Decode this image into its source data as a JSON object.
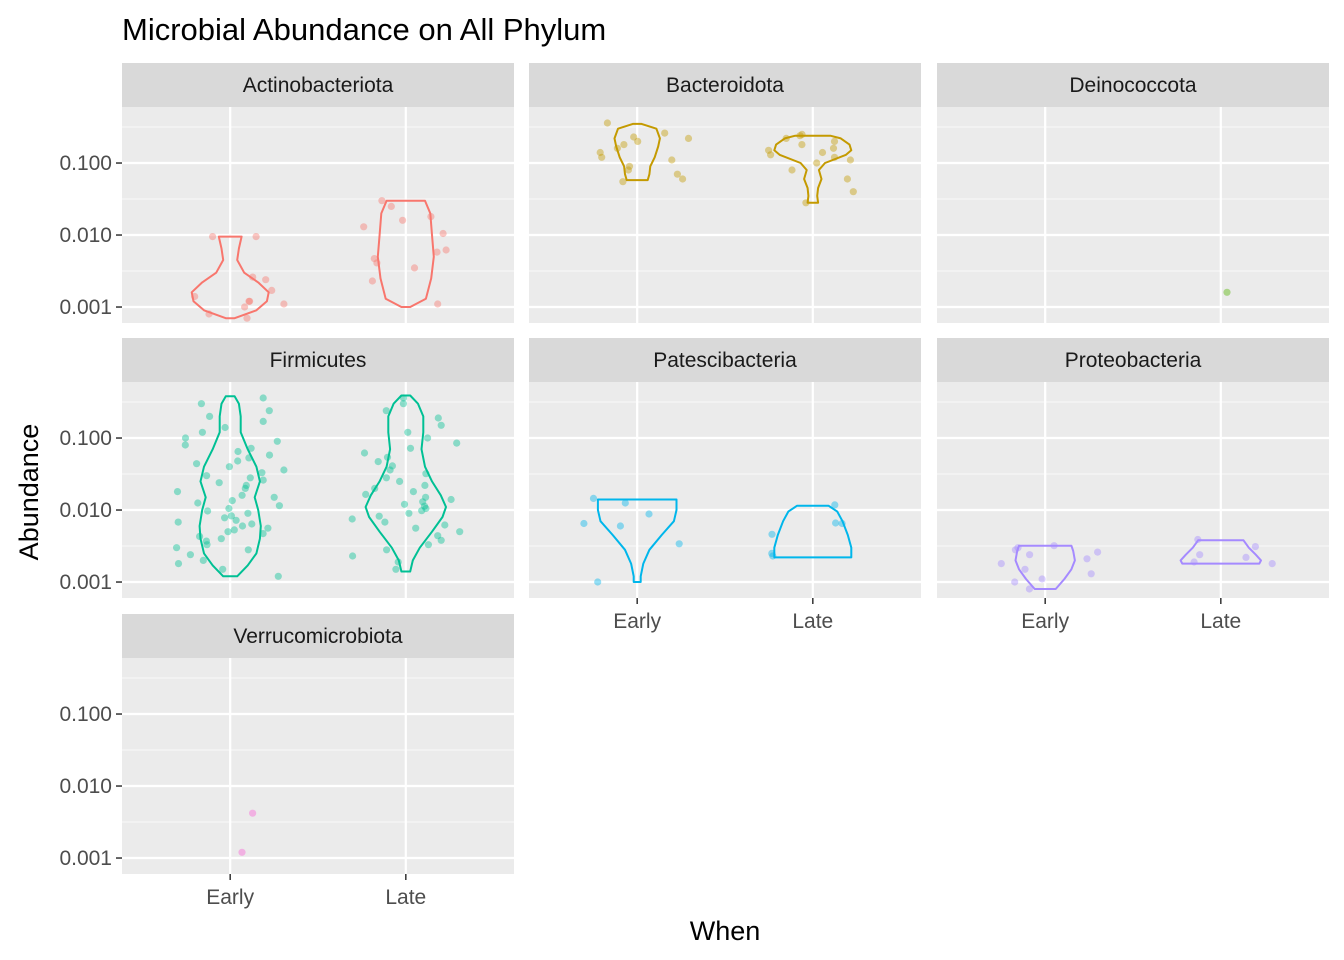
{
  "chart_data": {
    "type": "violin",
    "title": "Microbial Abundance on All Phylum",
    "xlabel": "When",
    "ylabel": "Abundance",
    "categories": [
      "Early",
      "Late"
    ],
    "y_scale": "log10",
    "ylim": [
      0.0006,
      0.6
    ],
    "y_ticks": [
      0.001,
      0.01,
      0.1
    ],
    "y_tick_labels": [
      "0.001",
      "0.010",
      "0.100"
    ],
    "grid": true,
    "legend": "none",
    "facets": [
      {
        "name": "Actinobacteriota",
        "color": "#F8766D",
        "violins": {
          "Early": [
            [
              0.0007,
              0.05
            ],
            [
              0.0009,
              0.3
            ],
            [
              0.0012,
              0.42
            ],
            [
              0.0016,
              0.44
            ],
            [
              0.0022,
              0.32
            ],
            [
              0.003,
              0.16
            ],
            [
              0.0045,
              0.08
            ],
            [
              0.0065,
              0.1
            ],
            [
              0.0095,
              0.13
            ]
          ],
          "Late": [
            [
              0.001,
              0.05
            ],
            [
              0.0013,
              0.23
            ],
            [
              0.0025,
              0.29
            ],
            [
              0.005,
              0.32
            ],
            [
              0.01,
              0.3
            ],
            [
              0.02,
              0.28
            ],
            [
              0.03,
              0.22
            ]
          ]
        },
        "points": {
          "Early": [
            0.0007,
            0.0008,
            0.001,
            0.0011,
            0.0012,
            0.0012,
            0.0014,
            0.0017,
            0.0026,
            0.0024,
            0.0095,
            0.0095
          ],
          "Late": [
            0.0011,
            0.0023,
            0.0035,
            0.0041,
            0.0047,
            0.0058,
            0.0062,
            0.0105,
            0.013,
            0.016,
            0.018,
            0.025,
            0.03
          ]
        }
      },
      {
        "name": "Bacteroidota",
        "color": "#C49A00",
        "violins": {
          "Early": [
            [
              0.058,
              0.12
            ],
            [
              0.07,
              0.14
            ],
            [
              0.09,
              0.15
            ],
            [
              0.12,
              0.2
            ],
            [
              0.17,
              0.24
            ],
            [
              0.22,
              0.26
            ],
            [
              0.3,
              0.22
            ],
            [
              0.35,
              0.05
            ]
          ],
          "Late": [
            [
              0.028,
              0.06
            ],
            [
              0.035,
              0.05
            ],
            [
              0.045,
              0.06
            ],
            [
              0.06,
              0.1
            ],
            [
              0.08,
              0.07
            ],
            [
              0.1,
              0.14
            ],
            [
              0.13,
              0.38
            ],
            [
              0.15,
              0.44
            ],
            [
              0.18,
              0.42
            ],
            [
              0.22,
              0.32
            ],
            [
              0.24,
              0.2
            ]
          ]
        },
        "points": {
          "Early": [
            0.055,
            0.06,
            0.07,
            0.08,
            0.09,
            0.11,
            0.12,
            0.14,
            0.16,
            0.18,
            0.2,
            0.22,
            0.23,
            0.26,
            0.36
          ],
          "Late": [
            0.028,
            0.04,
            0.06,
            0.08,
            0.1,
            0.11,
            0.12,
            0.13,
            0.14,
            0.15,
            0.16,
            0.18,
            0.2,
            0.22,
            0.24,
            0.25
          ]
        }
      },
      {
        "name": "Deinococcota",
        "color": "#53B400",
        "violins": {},
        "points": {
          "Late": [
            0.0016
          ]
        }
      },
      {
        "name": "Firmicutes",
        "color": "#00C094",
        "violins": {
          "Early": [
            [
              0.0012,
              0.08
            ],
            [
              0.0017,
              0.2
            ],
            [
              0.0025,
              0.3
            ],
            [
              0.004,
              0.34
            ],
            [
              0.006,
              0.35
            ],
            [
              0.01,
              0.32
            ],
            [
              0.015,
              0.28
            ],
            [
              0.025,
              0.34
            ],
            [
              0.04,
              0.3
            ],
            [
              0.07,
              0.2
            ],
            [
              0.12,
              0.12
            ],
            [
              0.2,
              0.12
            ],
            [
              0.3,
              0.1
            ],
            [
              0.38,
              0.05
            ]
          ],
          "Late": [
            [
              0.0014,
              0.05
            ],
            [
              0.002,
              0.08
            ],
            [
              0.003,
              0.16
            ],
            [
              0.005,
              0.3
            ],
            [
              0.008,
              0.42
            ],
            [
              0.011,
              0.46
            ],
            [
              0.016,
              0.4
            ],
            [
              0.025,
              0.3
            ],
            [
              0.04,
              0.22
            ],
            [
              0.07,
              0.18
            ],
            [
              0.12,
              0.2
            ],
            [
              0.2,
              0.2
            ],
            [
              0.3,
              0.14
            ],
            [
              0.39,
              0.05
            ]
          ]
        },
        "points": {
          "Early": [
            0.0012,
            0.0015,
            0.0018,
            0.002,
            0.0024,
            0.0028,
            0.003,
            0.0033,
            0.0037,
            0.004,
            0.0043,
            0.0047,
            0.005,
            0.0053,
            0.0056,
            0.006,
            0.0064,
            0.0068,
            0.0072,
            0.0078,
            0.0083,
            0.009,
            0.0097,
            0.0105,
            0.0115,
            0.0125,
            0.0135,
            0.015,
            0.016,
            0.018,
            0.02,
            0.022,
            0.024,
            0.026,
            0.028,
            0.03,
            0.033,
            0.036,
            0.04,
            0.044,
            0.048,
            0.053,
            0.058,
            0.065,
            0.072,
            0.08,
            0.09,
            0.1,
            0.12,
            0.14,
            0.17,
            0.2,
            0.24,
            0.3,
            0.36
          ],
          "Late": [
            0.0015,
            0.0019,
            0.0023,
            0.0028,
            0.0033,
            0.0038,
            0.0044,
            0.005,
            0.0056,
            0.0062,
            0.0068,
            0.0075,
            0.0082,
            0.009,
            0.0098,
            0.0105,
            0.0113,
            0.012,
            0.013,
            0.014,
            0.015,
            0.0165,
            0.018,
            0.02,
            0.022,
            0.025,
            0.028,
            0.032,
            0.036,
            0.041,
            0.047,
            0.054,
            0.062,
            0.072,
            0.085,
            0.1,
            0.12,
            0.15,
            0.19,
            0.24,
            0.3,
            0.36
          ]
        }
      },
      {
        "name": "Patescibacteria",
        "color": "#00B6EB",
        "violins": {
          "Early": [
            [
              0.001,
              0.04
            ],
            [
              0.0012,
              0.04
            ],
            [
              0.0018,
              0.07
            ],
            [
              0.0028,
              0.14
            ],
            [
              0.0045,
              0.28
            ],
            [
              0.007,
              0.42
            ],
            [
              0.01,
              0.45
            ],
            [
              0.014,
              0.45
            ]
          ],
          "Late": [
            [
              0.0022,
              0.44
            ],
            [
              0.003,
              0.44
            ],
            [
              0.0045,
              0.4
            ],
            [
              0.007,
              0.34
            ],
            [
              0.0095,
              0.28
            ],
            [
              0.0115,
              0.18
            ]
          ]
        },
        "points": {
          "Early": [
            0.001,
            0.0034,
            0.006,
            0.0065,
            0.0088,
            0.0125,
            0.0145
          ],
          "Late": [
            0.0023,
            0.0025,
            0.0046,
            0.0065,
            0.0066,
            0.0118
          ]
        }
      },
      {
        "name": "Proteobacteria",
        "color": "#A58AFF",
        "violins": {
          "Early": [
            [
              0.0008,
              0.12
            ],
            [
              0.0011,
              0.22
            ],
            [
              0.0015,
              0.3
            ],
            [
              0.002,
              0.34
            ],
            [
              0.0027,
              0.32
            ],
            [
              0.0032,
              0.3
            ]
          ],
          "Late": [
            [
              0.0018,
              0.44
            ],
            [
              0.002,
              0.46
            ],
            [
              0.0024,
              0.4
            ],
            [
              0.003,
              0.32
            ],
            [
              0.0038,
              0.26
            ]
          ]
        },
        "points": {
          "Early": [
            0.0008,
            0.001,
            0.0011,
            0.0013,
            0.0015,
            0.0018,
            0.0021,
            0.0024,
            0.0026,
            0.0028,
            0.003,
            0.0032
          ],
          "Late": [
            0.0018,
            0.0019,
            0.0022,
            0.0024,
            0.0031,
            0.0039
          ]
        }
      },
      {
        "name": "Verrucomicrobiota",
        "color": "#FB61D7",
        "violins": {},
        "points": {
          "Early": [
            0.0012,
            0.0042
          ]
        }
      }
    ]
  }
}
